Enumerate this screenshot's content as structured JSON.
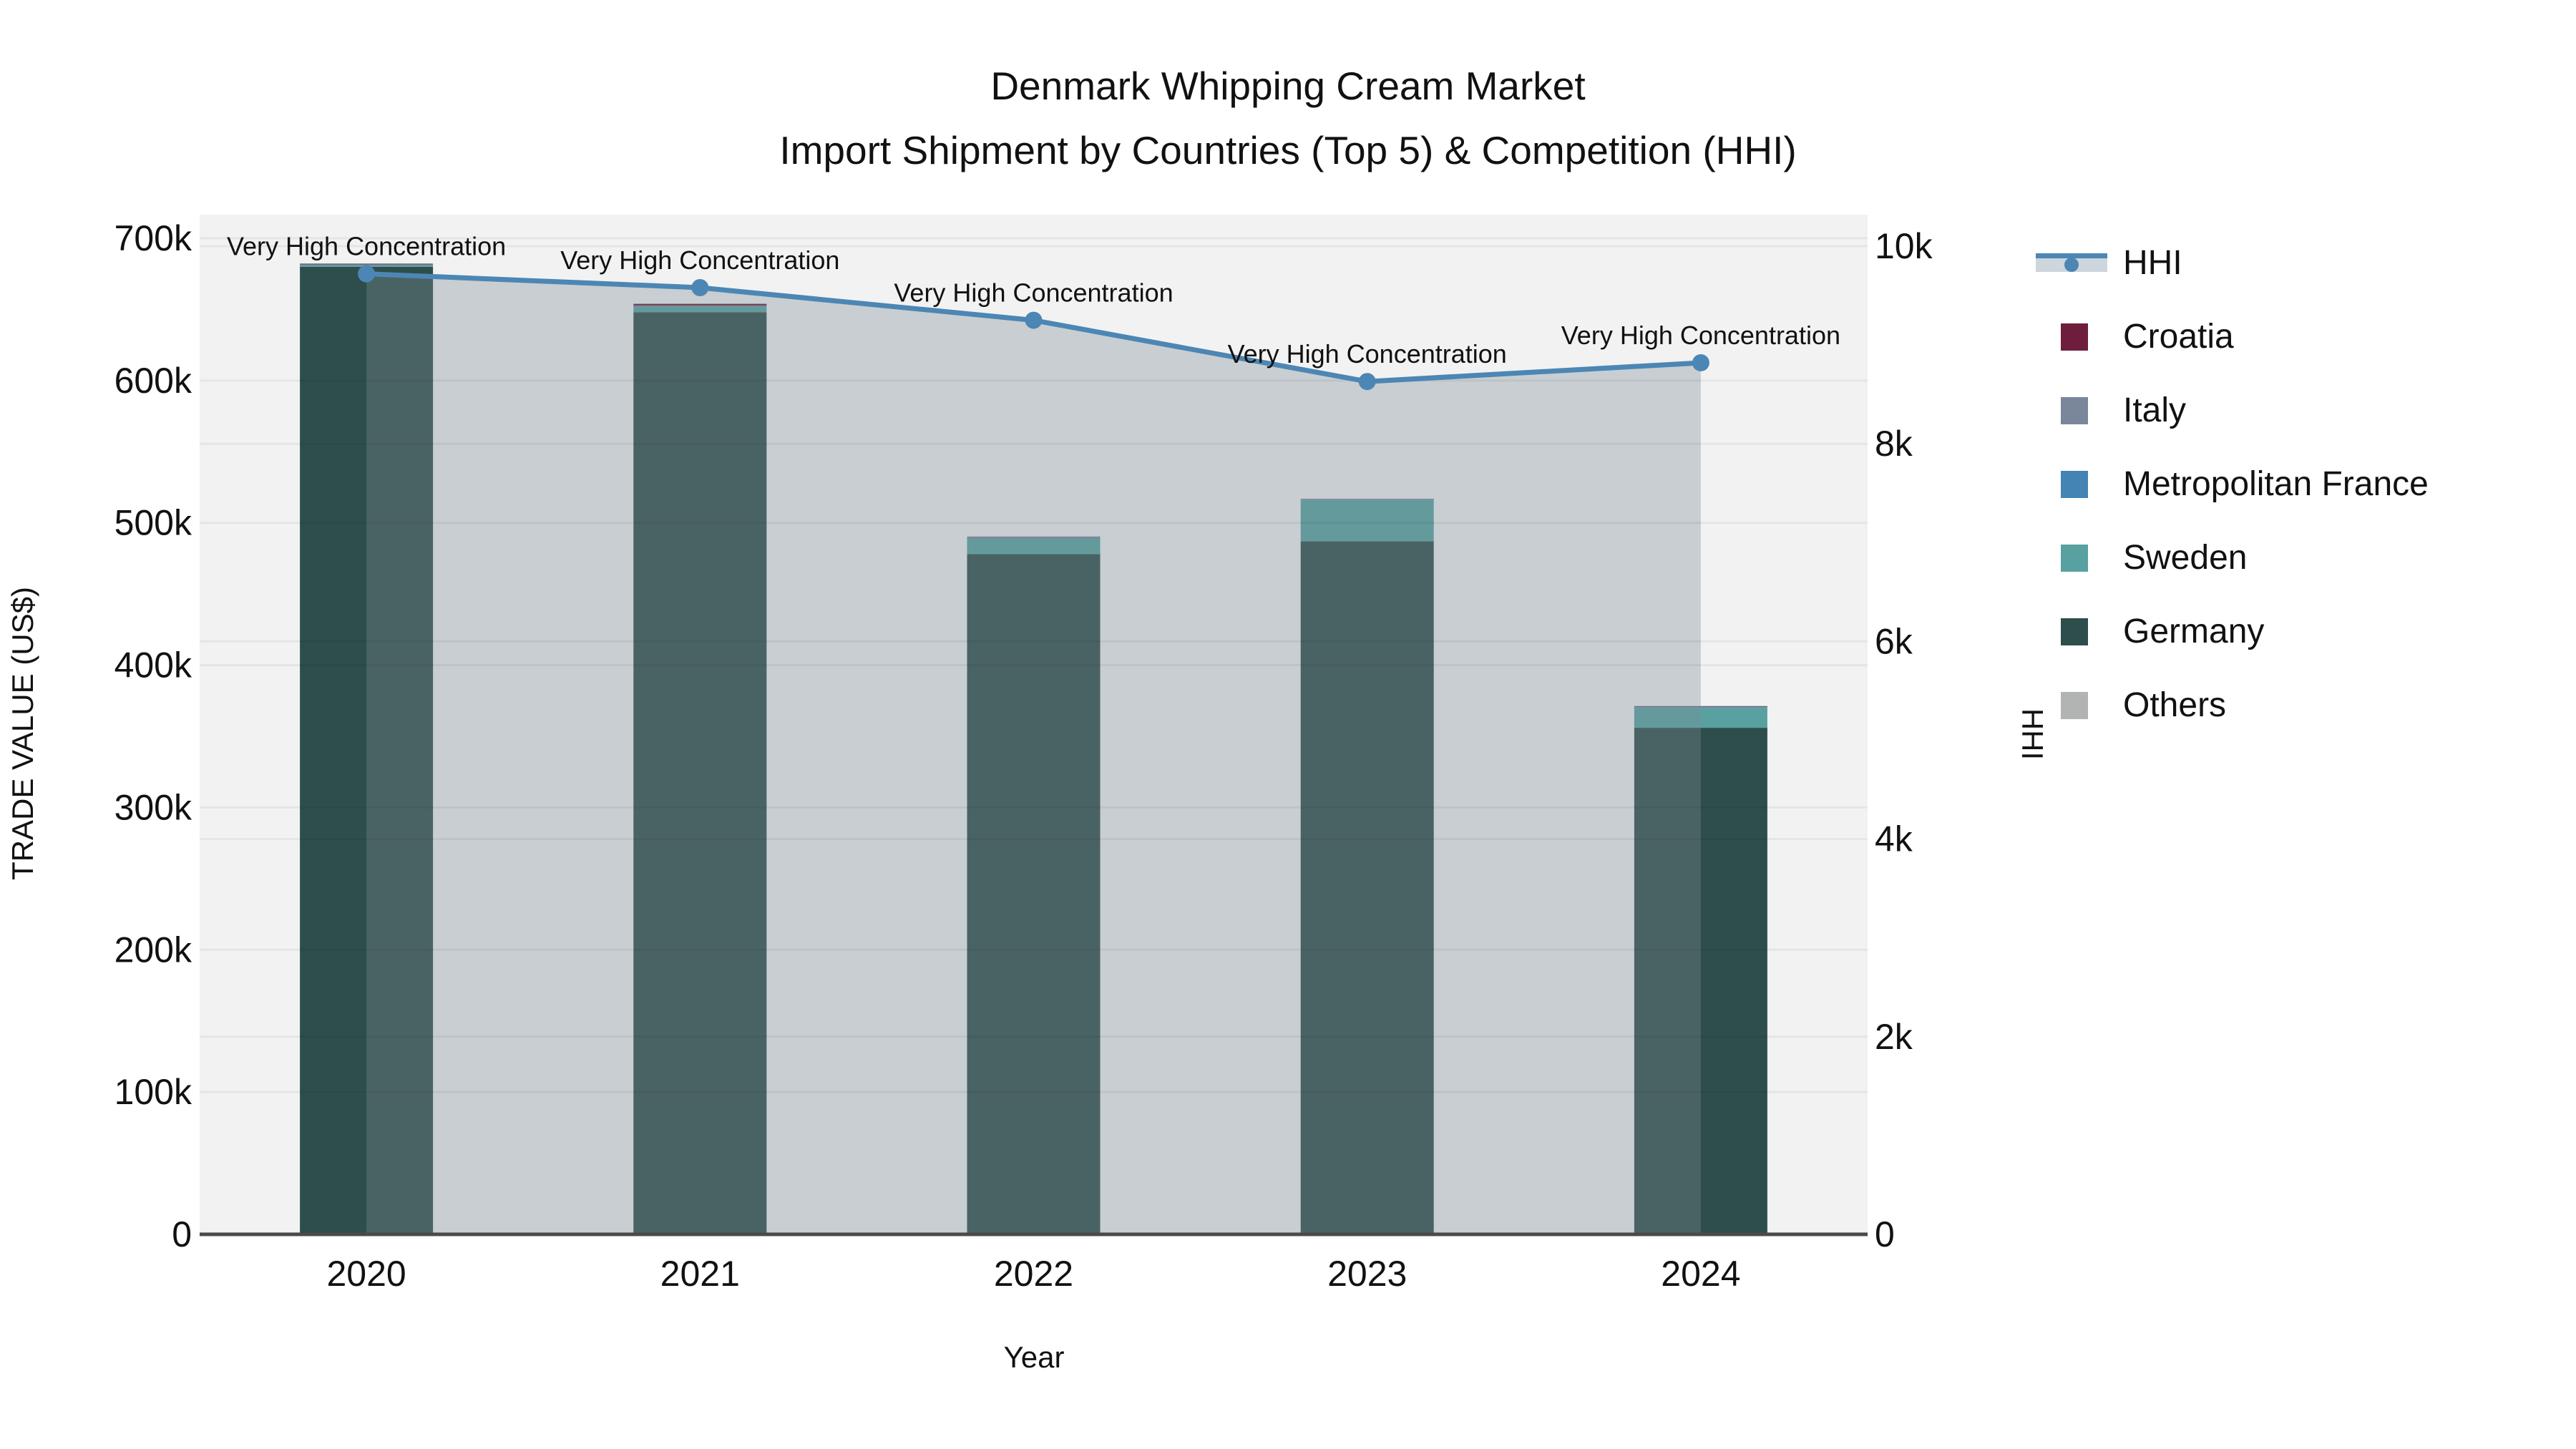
{
  "title": {
    "line1": "Denmark Whipping Cream Market",
    "line2": "Import Shipment by Countries (Top 5) & Competition (HHI)"
  },
  "axes": {
    "x": {
      "title": "Year",
      "ticks": [
        "2020",
        "2021",
        "2022",
        "2023",
        "2024"
      ]
    },
    "left": {
      "title": "TRADE VALUE (US$)",
      "tick_labels": [
        "0",
        "100k",
        "200k",
        "300k",
        "400k",
        "500k",
        "600k",
        "700k"
      ],
      "tick_values": [
        0,
        100000,
        200000,
        300000,
        400000,
        500000,
        600000,
        700000
      ]
    },
    "right": {
      "title": "HHI",
      "tick_labels": [
        "0",
        "2k",
        "4k",
        "6k",
        "8k",
        "10k"
      ],
      "tick_values": [
        0,
        2000,
        4000,
        6000,
        8000,
        10000
      ]
    }
  },
  "legend": {
    "items": [
      {
        "label": "HHI",
        "type": "line",
        "color": "#4C86B4"
      },
      {
        "label": "Croatia",
        "type": "square",
        "color": "#6E1E3C"
      },
      {
        "label": "Italy",
        "type": "square",
        "color": "#7A8699"
      },
      {
        "label": "Metropolitan France",
        "type": "square",
        "color": "#4484B4"
      },
      {
        "label": "Sweden",
        "type": "square",
        "color": "#58A1A0"
      },
      {
        "label": "Germany",
        "type": "square",
        "color": "#2E4E4B"
      },
      {
        "label": "Others",
        "type": "square",
        "color": "#B2B4B4"
      }
    ]
  },
  "chart_data": {
    "type": "bar",
    "subtype": "stacked-bars-with-secondary-axis-line",
    "title": "Denmark Whipping Cream Market Import Shipment by Countries (Top 5) & Competition (HHI)",
    "categories": [
      "2020",
      "2021",
      "2022",
      "2023",
      "2024"
    ],
    "xlabel": "Year",
    "ylabel": "TRADE VALUE (US$)",
    "y2label": "HHI",
    "ylim": [
      0,
      700000
    ],
    "y2lim": [
      0,
      10000
    ],
    "grid": true,
    "legend_position": "right",
    "plot_bg": "#F2F2F2",
    "stack_order_bottom_to_top": [
      "Germany",
      "Sweden",
      "Metropolitan France",
      "Italy",
      "Croatia",
      "Others"
    ],
    "series": [
      {
        "name": "Croatia",
        "color": "#6E1E3C",
        "values": [
          400,
          1200,
          300,
          200,
          200
        ]
      },
      {
        "name": "Italy",
        "color": "#7A8699",
        "values": [
          300,
          400,
          400,
          300,
          400
        ]
      },
      {
        "name": "Metropolitan France",
        "color": "#4484B4",
        "values": [
          300,
          300,
          500,
          300,
          500
        ]
      },
      {
        "name": "Sweden",
        "color": "#58A1A0",
        "values": [
          1100,
          4000,
          11000,
          29000,
          14000
        ]
      },
      {
        "name": "Germany",
        "color": "#2E4E4B",
        "values": [
          680000,
          648000,
          478000,
          487000,
          356000
        ]
      },
      {
        "name": "Others",
        "color": "#B2B4B4",
        "values": [
          300,
          300,
          300,
          200,
          300
        ]
      }
    ],
    "bar_totals": [
      682400,
      654200,
      490500,
      517000,
      371400
    ],
    "line_series": {
      "name": "HHI",
      "axis": "right",
      "color": "#4C86B4",
      "area_fill": "rgba(124,139,150,0.35)",
      "values": [
        9720,
        9580,
        9250,
        8630,
        8820
      ],
      "point_annotations": [
        "Very High Concentration",
        "Very High Concentration",
        "Very High Concentration",
        "Very High Concentration",
        "Very High Concentration"
      ]
    }
  }
}
